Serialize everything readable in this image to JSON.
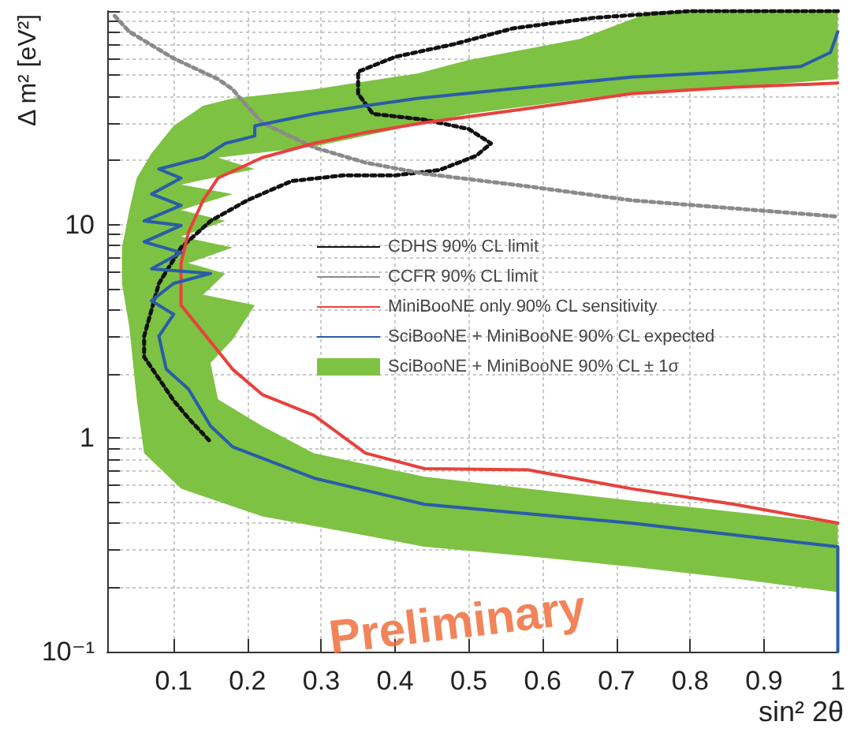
{
  "chart_data": {
    "type": "line",
    "xlabel": "sin² 2θ",
    "ylabel": "Δ m² [eV²]",
    "xlim": [
      0.01,
      1
    ],
    "xticks": [
      0.1,
      0.2,
      0.3,
      0.4,
      0.5,
      0.6,
      0.7,
      0.8,
      0.9,
      1
    ],
    "ylim": [
      0.1,
      100
    ],
    "log": "y",
    "yticks": [
      {
        "value": 0.1,
        "label": "10⁻¹"
      },
      {
        "value": 0.2,
        "label": null
      },
      {
        "value": 0.3,
        "label": null
      },
      {
        "value": 0.4,
        "label": null
      },
      {
        "value": 0.5,
        "label": null
      },
      {
        "value": 0.6,
        "label": null
      },
      {
        "value": 0.7,
        "label": null
      },
      {
        "value": 0.8,
        "label": null
      },
      {
        "value": 0.9,
        "label": null
      },
      1,
      {
        "value": 2,
        "label": null
      },
      {
        "value": 3,
        "label": null
      },
      {
        "value": 4,
        "label": null
      },
      {
        "value": 5,
        "label": null
      },
      {
        "value": 6,
        "label": null
      },
      {
        "value": 7,
        "label": null
      },
      {
        "value": 8,
        "label": null
      },
      {
        "value": 9,
        "label": null
      },
      10,
      {
        "value": 20,
        "label": null
      },
      {
        "value": 30,
        "label": null
      },
      {
        "value": 40,
        "label": null
      },
      {
        "value": 50,
        "label": null
      },
      {
        "value": 60,
        "label": null
      },
      {
        "value": 70,
        "label": null
      },
      {
        "value": 80,
        "label": null
      },
      {
        "value": 90,
        "label": null
      },
      {
        "value": 100,
        "label": null
      }
    ],
    "grid": true,
    "legend": "right",
    "marker": "none",
    "annotations": [
      "Preliminary"
    ],
    "series": [
      {
        "name": "CDHS 90% CL limit",
        "color": "#111111",
        "line_style": "dotted",
        "x": [
          1.0,
          0.8,
          0.67,
          0.56,
          0.48,
          0.4,
          0.35,
          0.35,
          0.37,
          0.44,
          0.5,
          0.53,
          0.51,
          0.46,
          0.4,
          0.33,
          0.26,
          0.2,
          0.15,
          0.11,
          0.08,
          0.06,
          0.06,
          0.08,
          0.1,
          0.12,
          0.15
        ],
        "values": [
          100,
          100,
          93,
          83,
          70,
          61,
          52,
          41,
          33,
          31,
          28,
          24,
          21,
          18,
          17,
          17,
          16,
          13,
          10.4,
          7.8,
          5.3,
          3.0,
          2.4,
          1.9,
          1.5,
          1.24,
          0.96
        ]
      },
      {
        "name": "CCFR 90% CL limit",
        "color": "#8a8a8a",
        "line_style": "dotted",
        "x": [
          0.02,
          0.04,
          0.1,
          0.16,
          0.18,
          0.19,
          0.22,
          0.29,
          0.36,
          0.44,
          0.58,
          0.72,
          0.86,
          1.0
        ],
        "values": [
          95,
          80,
          60,
          48,
          43,
          39,
          30,
          23,
          19.5,
          17.3,
          15.1,
          13.0,
          11.9,
          10.9
        ]
      },
      {
        "name": "MiniBooNE only 90% CL sensitivity",
        "color": "#e8413c",
        "line_style": "solid",
        "x": [
          1.0,
          0.86,
          0.72,
          0.58,
          0.44,
          0.36,
          0.29,
          0.22,
          0.18,
          0.11,
          0.11,
          0.12,
          0.14,
          0.16,
          0.22,
          0.29,
          0.36,
          0.44,
          0.58,
          0.72,
          0.86,
          1.0
        ],
        "values": [
          0.4,
          0.49,
          0.58,
          0.71,
          0.72,
          0.85,
          1.28,
          1.6,
          2.1,
          4.2,
          6.6,
          9.2,
          13,
          16.5,
          20.6,
          24,
          27,
          30,
          35,
          41,
          44,
          46
        ]
      },
      {
        "name": "SciBooNE + MiniBooNE 90% CL expected",
        "color": "#2a5caa",
        "line_style": "solid",
        "x": [
          1.0,
          1.0,
          0.72,
          0.44,
          0.29,
          0.18,
          0.15,
          0.12,
          0.09,
          0.08,
          0.1,
          0.07,
          0.1,
          0.15,
          0.07,
          0.11,
          0.06,
          0.11,
          0.06,
          0.11,
          0.07,
          0.11,
          0.08,
          0.14,
          0.17,
          0.21,
          0.21,
          0.29,
          0.36,
          0.43,
          0.58,
          0.72,
          0.86,
          0.95,
          0.99,
          1.0
        ],
        "values": [
          0.1,
          0.31,
          0.4,
          0.49,
          0.65,
          0.91,
          1.14,
          1.7,
          2.1,
          3.0,
          3.8,
          4.4,
          5.3,
          5.9,
          6.2,
          7.4,
          8.3,
          9.9,
          10.4,
          12.3,
          13.9,
          16.5,
          18.2,
          20.6,
          24,
          26,
          29,
          33,
          36,
          39,
          44,
          49,
          52,
          55,
          64,
          80
        ]
      },
      {
        "name": "SciBooNE + MiniBooNE 90% CL ± 1σ",
        "type": "area",
        "color": "#7dc242",
        "x": [
          1.0,
          0.75,
          0.65,
          0.5,
          0.43,
          0.29,
          0.18,
          0.14,
          0.1,
          0.07,
          0.05,
          0.04,
          0.03,
          0.03,
          0.04,
          0.05,
          0.06,
          0.11,
          0.22,
          0.36,
          0.44,
          0.58,
          0.72,
          0.86,
          1.0,
          1.0,
          0.72,
          0.44,
          0.29,
          0.22,
          0.16,
          0.15,
          0.18,
          0.21,
          0.14,
          0.17,
          0.12,
          0.18,
          0.11,
          0.17,
          0.11,
          0.18,
          0.11,
          0.21,
          0.16,
          0.29,
          0.5,
          0.71,
          0.86,
          1.0
        ],
        "values": [
          100,
          100,
          74,
          59,
          51,
          43,
          39,
          36,
          29,
          21.6,
          16.5,
          11.7,
          7.8,
          5.3,
          3.3,
          1.52,
          0.85,
          0.58,
          0.43,
          0.35,
          0.31,
          0.28,
          0.25,
          0.22,
          0.19,
          0.4,
          0.51,
          0.66,
          0.85,
          1.14,
          1.52,
          2.25,
          2.9,
          4.2,
          4.7,
          5.9,
          6.6,
          7.8,
          8.8,
          10.4,
          11.7,
          13.9,
          15.4,
          18.2,
          20.6,
          23.2,
          33,
          41,
          44,
          48
        ]
      }
    ]
  }
}
